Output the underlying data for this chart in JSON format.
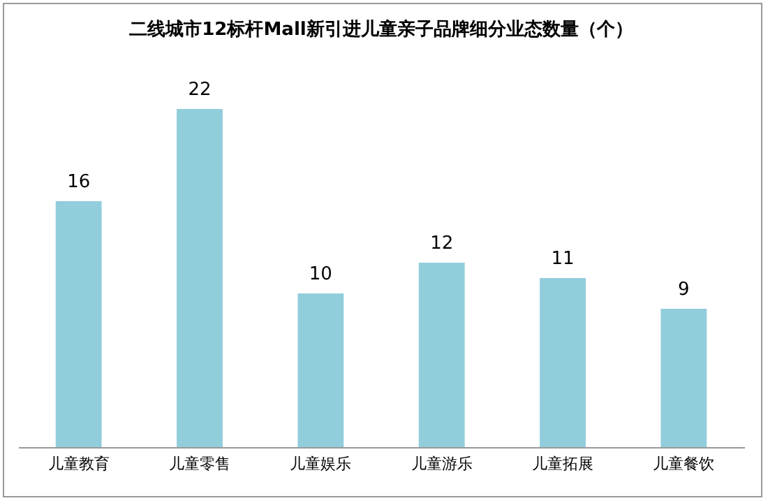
{
  "chart_data": {
    "type": "bar",
    "title": "二线城市12标杆Mall新引进儿童亲子品牌细分业态数量（个）",
    "categories": [
      "儿童教育",
      "儿童零售",
      "儿童娱乐",
      "儿童游乐",
      "儿童拓展",
      "儿童餐饮"
    ],
    "values": [
      16,
      22,
      10,
      12,
      11,
      9
    ],
    "color": "#92cddc",
    "data_labels": true
  }
}
